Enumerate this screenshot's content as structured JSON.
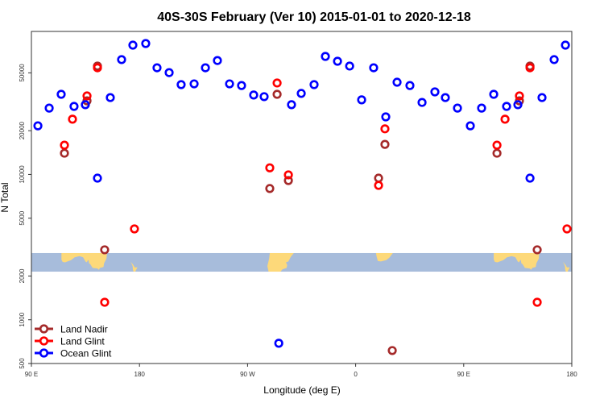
{
  "chart_data": {
    "type": "scatter",
    "title": "40S-30S February (Ver 10)   2015-01-01 to 2020-12-18",
    "xlabel": "Longitude (deg E)",
    "ylabel": "N Total",
    "yscale": "log",
    "xlim": [
      90,
      540
    ],
    "ylim": [
      500,
      96400
    ],
    "xticks": [
      {
        "value": 90,
        "label": "90 E"
      },
      {
        "value": 180,
        "label": "180"
      },
      {
        "value": 270,
        "label": "90 W"
      },
      {
        "value": 360,
        "label": "0"
      },
      {
        "value": 450,
        "label": "90 E"
      },
      {
        "value": 540,
        "label": "180"
      }
    ],
    "yticks": [
      500,
      1000,
      2000,
      5000,
      10000,
      20000,
      50000
    ],
    "legend_position": "bottom-left",
    "map_band_range": [
      2143,
      2877
    ],
    "series": [
      {
        "name": "Land Nadir",
        "color": "#a52a2a",
        "points": [
          [
            117.5,
            14000
          ],
          [
            136.3,
            32100
          ],
          [
            145,
            55700
          ],
          [
            151,
            3030
          ],
          [
            288.5,
            8000
          ],
          [
            294.6,
            35600
          ],
          [
            304,
            9080
          ],
          [
            379.1,
            9430
          ],
          [
            384.4,
            16100
          ],
          [
            390.5,
            614
          ],
          [
            477.7,
            14000
          ],
          [
            496.4,
            32100
          ],
          [
            505.2,
            55700
          ],
          [
            511.2,
            3030
          ]
        ]
      },
      {
        "name": "Land Glint",
        "color": "#ff0000",
        "points": [
          [
            117.5,
            15900
          ],
          [
            124.2,
            24000
          ],
          [
            136.3,
            34700
          ],
          [
            145,
            54200
          ],
          [
            151,
            1320
          ],
          [
            175.8,
            4220
          ],
          [
            288.5,
            11100
          ],
          [
            294.6,
            42600
          ],
          [
            304,
            9930
          ],
          [
            379.1,
            8410
          ],
          [
            384.4,
            20600
          ],
          [
            477.7,
            15900
          ],
          [
            484.4,
            24000
          ],
          [
            496.4,
            34700
          ],
          [
            505.2,
            54200
          ],
          [
            511.2,
            1320
          ],
          [
            536,
            4220
          ]
        ]
      },
      {
        "name": "Ocean Glint",
        "color": "#0000ff",
        "points": [
          [
            95.4,
            21600
          ],
          [
            104.8,
            28600
          ],
          [
            114.8,
            35600
          ],
          [
            125.5,
            29400
          ],
          [
            134.9,
            30200
          ],
          [
            145,
            9430
          ],
          [
            155.7,
            33800
          ],
          [
            165.1,
            61700
          ],
          [
            174.5,
            77600
          ],
          [
            185.2,
            79600
          ],
          [
            194.6,
            54200
          ],
          [
            204.7,
            50200
          ],
          [
            214.7,
            41500
          ],
          [
            225.5,
            42000
          ],
          [
            234.9,
            54200
          ],
          [
            244.9,
            60800
          ],
          [
            255,
            42000
          ],
          [
            265,
            40900
          ],
          [
            275.1,
            35200
          ],
          [
            283.8,
            34300
          ],
          [
            296,
            689
          ],
          [
            306.6,
            30200
          ],
          [
            314.7,
            36100
          ],
          [
            325.4,
            41500
          ],
          [
            334.8,
            64900
          ],
          [
            344.9,
            60100
          ],
          [
            355,
            55700
          ],
          [
            365,
            32600
          ],
          [
            375,
            54200
          ],
          [
            385.1,
            24900
          ],
          [
            394.5,
            43100
          ],
          [
            405.2,
            40900
          ],
          [
            415.3,
            31300
          ],
          [
            426,
            37000
          ],
          [
            434.7,
            33800
          ],
          [
            444.8,
            28600
          ],
          [
            455.5,
            21600
          ],
          [
            464.9,
            28600
          ],
          [
            475,
            35600
          ],
          [
            485.7,
            29400
          ],
          [
            495.1,
            30200
          ],
          [
            505.2,
            9430
          ],
          [
            515.2,
            33800
          ],
          [
            525.3,
            61700
          ],
          [
            534.7,
            77600
          ]
        ]
      }
    ]
  }
}
